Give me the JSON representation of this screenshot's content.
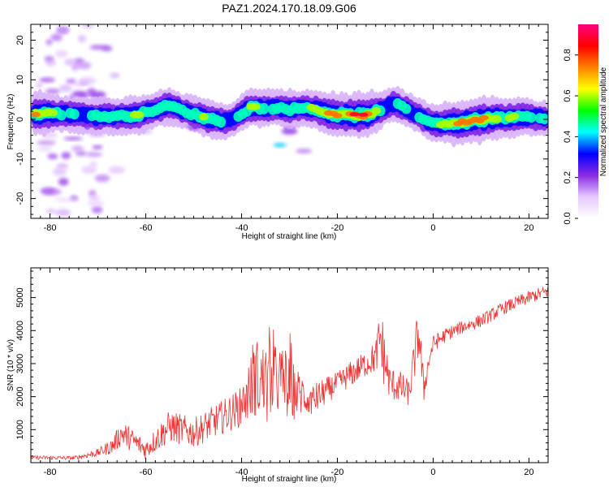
{
  "title": "PAZ1.2024.170.18.09.G06",
  "chart_data": [
    {
      "type": "heatmap",
      "xlabel": "Height of straight line (km)",
      "ylabel": "Frequency (Hz)",
      "xlim": [
        -84,
        24
      ],
      "ylim": [
        -25,
        24
      ],
      "xticks": [
        -80,
        -60,
        -40,
        -20,
        0,
        20
      ],
      "yticks": [
        -20,
        -10,
        0,
        10,
        20
      ],
      "colorbar": {
        "label": "Normalized spectral amplitude",
        "range": [
          0,
          0.95
        ],
        "ticks": [
          0.0,
          0.2,
          0.4,
          0.6,
          0.8
        ],
        "colors": [
          "#ffffff",
          "#e6c8ff",
          "#8a2be2",
          "#0000ff",
          "#00ffff",
          "#00ff00",
          "#ffff00",
          "#ff8000",
          "#ff0000",
          "#ff0080"
        ]
      },
      "ridge": [
        {
          "x": -82,
          "y": 1.5,
          "a": 0.75
        },
        {
          "x": -78,
          "y": 1.5,
          "a": 0.5
        },
        {
          "x": -74,
          "y": 1.0,
          "a": 0.45
        },
        {
          "x": -70,
          "y": 0.8,
          "a": 0.55
        },
        {
          "x": -66,
          "y": 0.8,
          "a": 0.5
        },
        {
          "x": -62,
          "y": 1.0,
          "a": 0.6
        },
        {
          "x": -58,
          "y": 2.5,
          "a": 0.45
        },
        {
          "x": -55,
          "y": 3.5,
          "a": 0.55
        },
        {
          "x": -52,
          "y": 2.0,
          "a": 0.45
        },
        {
          "x": -48,
          "y": 0.5,
          "a": 0.6
        },
        {
          "x": -44,
          "y": -0.5,
          "a": 0.5
        },
        {
          "x": -42,
          "y": 0.0,
          "a": 0.35
        },
        {
          "x": -38,
          "y": 3.0,
          "a": 0.6
        },
        {
          "x": -34,
          "y": 3.0,
          "a": 0.5
        },
        {
          "x": -30,
          "y": 2.5,
          "a": 0.55
        },
        {
          "x": -26,
          "y": 3.0,
          "a": 0.5
        },
        {
          "x": -22,
          "y": 1.5,
          "a": 0.75
        },
        {
          "x": -18,
          "y": 1.0,
          "a": 0.8
        },
        {
          "x": -14,
          "y": 1.0,
          "a": 0.9
        },
        {
          "x": -10,
          "y": 3.0,
          "a": 0.35
        },
        {
          "x": -8,
          "y": 4.0,
          "a": 0.45
        },
        {
          "x": -4,
          "y": 1.5,
          "a": 0.4
        },
        {
          "x": 0,
          "y": -1.0,
          "a": 0.5
        },
        {
          "x": 5,
          "y": -1.0,
          "a": 0.8
        },
        {
          "x": 10,
          "y": 0.0,
          "a": 0.85
        },
        {
          "x": 16,
          "y": 0.5,
          "a": 0.6
        },
        {
          "x": 22,
          "y": 0.5,
          "a": 0.45
        }
      ]
    },
    {
      "type": "line",
      "xlabel": "Height of straight line (km)",
      "ylabel": "SNR (10 * v/v)",
      "xlim": [
        -84,
        24
      ],
      "ylim": [
        0,
        5900
      ],
      "xticks": [
        -80,
        -60,
        -40,
        -20,
        0,
        20
      ],
      "yticks": [
        1000,
        2000,
        3000,
        4000,
        5000
      ],
      "series": [
        {
          "color": "#ee3333",
          "envelope_x": [
            -84,
            -80,
            -75,
            -70,
            -67,
            -65,
            -60,
            -55,
            -50,
            -45,
            -40,
            -37,
            -35,
            -32,
            -30,
            -28,
            -25,
            -22,
            -20,
            -17,
            -14,
            -12,
            -11,
            -10,
            -9,
            -7,
            -5,
            -3,
            -2,
            -1,
            0,
            3,
            6,
            10,
            15,
            20,
            24
          ],
          "envelope_y": [
            150,
            150,
            140,
            300,
            500,
            900,
            400,
            1100,
            900,
            1300,
            1700,
            2600,
            2300,
            2500,
            2200,
            2100,
            1900,
            2200,
            2400,
            2700,
            3000,
            3200,
            3800,
            3000,
            2400,
            2300,
            2100,
            4000,
            2200,
            3000,
            3600,
            3900,
            4100,
            4300,
            4700,
            5000,
            5200
          ],
          "noise": [
            60,
            60,
            60,
            120,
            250,
            400,
            300,
            500,
            450,
            500,
            600,
            1200,
            1300,
            1100,
            1000,
            700,
            500,
            400,
            350,
            400,
            400,
            500,
            1000,
            900,
            500,
            500,
            400,
            900,
            500,
            300,
            250,
            220,
            200,
            200,
            200,
            200,
            200
          ]
        }
      ]
    }
  ]
}
